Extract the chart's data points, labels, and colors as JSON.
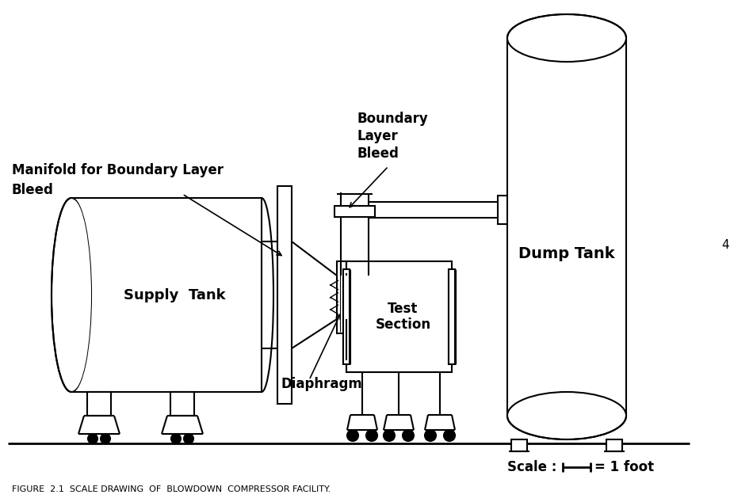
{
  "title": "FIGURE  2.1  SCALE DRAWING  OF  BLOWDOWN  COMPRESSOR FACILITY.",
  "background_color": "#ffffff",
  "line_color": "#000000",
  "labels": {
    "supply_tank": "Supply  Tank",
    "dump_tank": "Dump Tank",
    "test_section": "Test\nSection",
    "diaphragm": "Diaphragm",
    "manifold_line1": "Manifold for Boundary Layer",
    "manifold_line2": "Bleed",
    "boundary_layer_line1": "Boundary",
    "boundary_layer_line2": "Layer",
    "boundary_layer_line3": "Bleed",
    "scale_text": "Scale :",
    "scale_foot": "= 1 foot",
    "page_num": "4"
  }
}
